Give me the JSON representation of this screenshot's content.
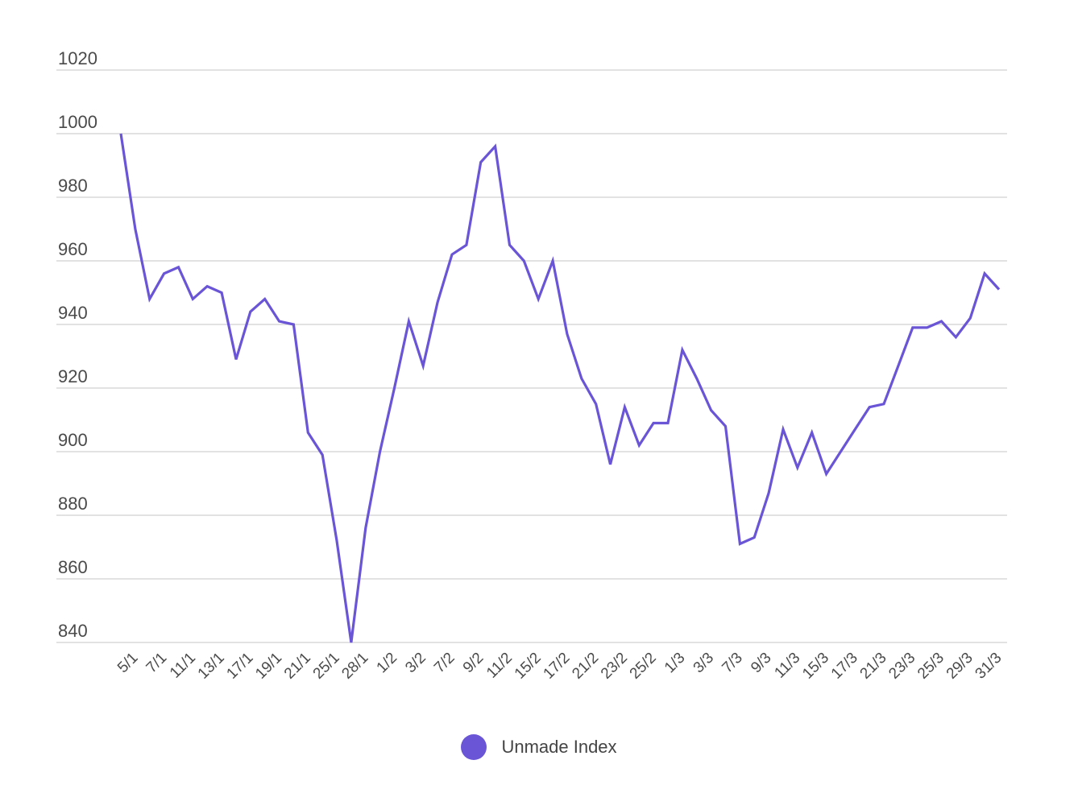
{
  "chart_data": {
    "type": "line",
    "title": "",
    "xlabel": "",
    "ylabel": "",
    "ylim": [
      840,
      1020
    ],
    "y_ticks": [
      840,
      860,
      880,
      900,
      920,
      940,
      960,
      980,
      1000,
      1020
    ],
    "y_tick_labels": [
      "840",
      "860",
      "880",
      "900",
      "920",
      "940",
      "960",
      "980",
      "1000",
      "1020"
    ],
    "x_tick_labels": [
      "5/1",
      "7/1",
      "11/1",
      "13/1",
      "17/1",
      "19/1",
      "21/1",
      "25/1",
      "28/1",
      "1/2",
      "3/2",
      "7/2",
      "9/2",
      "11/2",
      "15/2",
      "17/2",
      "21/2",
      "23/2",
      "25/2",
      "1/3",
      "3/3",
      "7/3",
      "9/3",
      "11/3",
      "15/3",
      "17/3",
      "21/3",
      "23/3",
      "25/3",
      "29/3",
      "31/3"
    ],
    "grid": true,
    "legend_position": "bottom-center",
    "series": [
      {
        "name": "Unmade Index",
        "color": "#6a55d6",
        "values": [
          1000,
          970,
          948,
          956,
          958,
          948,
          952,
          950,
          929,
          944,
          948,
          941,
          940,
          906,
          899,
          872,
          840,
          876,
          900,
          920,
          941,
          927,
          947,
          962,
          965,
          991,
          996,
          965,
          960,
          948,
          960,
          937,
          923,
          915,
          896,
          914,
          902,
          909,
          909,
          932,
          923,
          913,
          908,
          871,
          873,
          887,
          907,
          895,
          906,
          893,
          900,
          907,
          914,
          915,
          927,
          939,
          939,
          941,
          936,
          942,
          956,
          951
        ]
      }
    ]
  }
}
